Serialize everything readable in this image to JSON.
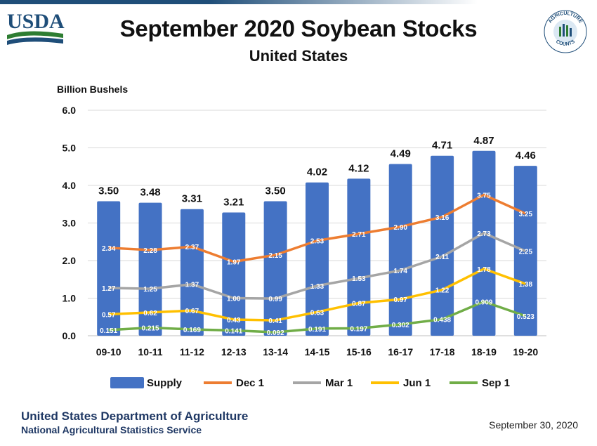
{
  "header": {
    "title": "September 2020 Soybean Stocks",
    "subtitle": "United States",
    "usda_logo_text": "USDA",
    "ag_counts_logo_text": "AGRICULTURE COUNTS"
  },
  "footer": {
    "org": "United States Department of Agriculture",
    "sub": "National Agricultural Statistics Service",
    "date": "September 30, 2020"
  },
  "chart_data": {
    "type": "bar",
    "title": "September 2020 Soybean Stocks",
    "subtitle": "United States",
    "ylabel": "Billion Bushels",
    "xlabel": "",
    "ylim": [
      0,
      6
    ],
    "yticks": [
      "0.0",
      "1.0",
      "2.0",
      "3.0",
      "4.0",
      "5.0",
      "6.0"
    ],
    "grid": true,
    "legend_position": "bottom",
    "categories": [
      "09-10",
      "10-11",
      "11-12",
      "12-13",
      "13-14",
      "14-15",
      "15-16",
      "16-17",
      "17-18",
      "18-19",
      "19-20"
    ],
    "bars": {
      "name": "Supply",
      "color": "#4472c4",
      "values": [
        3.5,
        3.48,
        3.31,
        3.21,
        3.5,
        4.02,
        4.12,
        4.49,
        4.71,
        4.87,
        4.46
      ],
      "labels": [
        "3.50",
        "3.48",
        "3.31",
        "3.21",
        "3.50",
        "4.02",
        "4.12",
        "4.49",
        "4.71",
        "4.87",
        "4.46"
      ],
      "heights": [
        3.58,
        3.54,
        3.37,
        3.28,
        3.58,
        4.08,
        4.18,
        4.57,
        4.79,
        4.92,
        4.52
      ]
    },
    "series": [
      {
        "name": "Dec 1",
        "color": "#ed7d31",
        "values": [
          2.34,
          2.28,
          2.37,
          1.97,
          2.15,
          2.53,
          2.71,
          2.9,
          3.16,
          3.75,
          3.25
        ],
        "labels": [
          "2.34",
          "2.28",
          "2.37",
          "1.97",
          "2.15",
          "2.53",
          "2.71",
          "2.90",
          "3.16",
          "3.75",
          "3.25"
        ]
      },
      {
        "name": "Mar 1",
        "color": "#a5a5a5",
        "values": [
          1.27,
          1.25,
          1.37,
          1.0,
          0.99,
          1.33,
          1.53,
          1.74,
          2.11,
          2.73,
          2.25
        ],
        "labels": [
          "1.27",
          "1.25",
          "1.37",
          "1.00",
          "0.99",
          "1.33",
          "1.53",
          "1.74",
          "2.11",
          "2.73",
          "2.25"
        ]
      },
      {
        "name": "Jun 1",
        "color": "#ffc000",
        "values": [
          0.57,
          0.62,
          0.67,
          0.43,
          0.41,
          0.63,
          0.87,
          0.97,
          1.22,
          1.78,
          1.38
        ],
        "labels": [
          "0.57",
          "0.62",
          "0.67",
          "0.43",
          "0.41",
          "0.63",
          "0.87",
          "0.97",
          "1.22",
          "1.78",
          "1.38"
        ]
      },
      {
        "name": "Sep 1",
        "color": "#70ad47",
        "values": [
          0.151,
          0.215,
          0.169,
          0.141,
          0.092,
          0.191,
          0.197,
          0.302,
          0.438,
          0.909,
          0.523
        ],
        "labels": [
          "0.151",
          "0.215",
          "0.169",
          "0.141",
          "0.092",
          "0.191",
          "0.197",
          "0.302",
          "0.438",
          "0.909",
          "0.523"
        ]
      }
    ]
  }
}
